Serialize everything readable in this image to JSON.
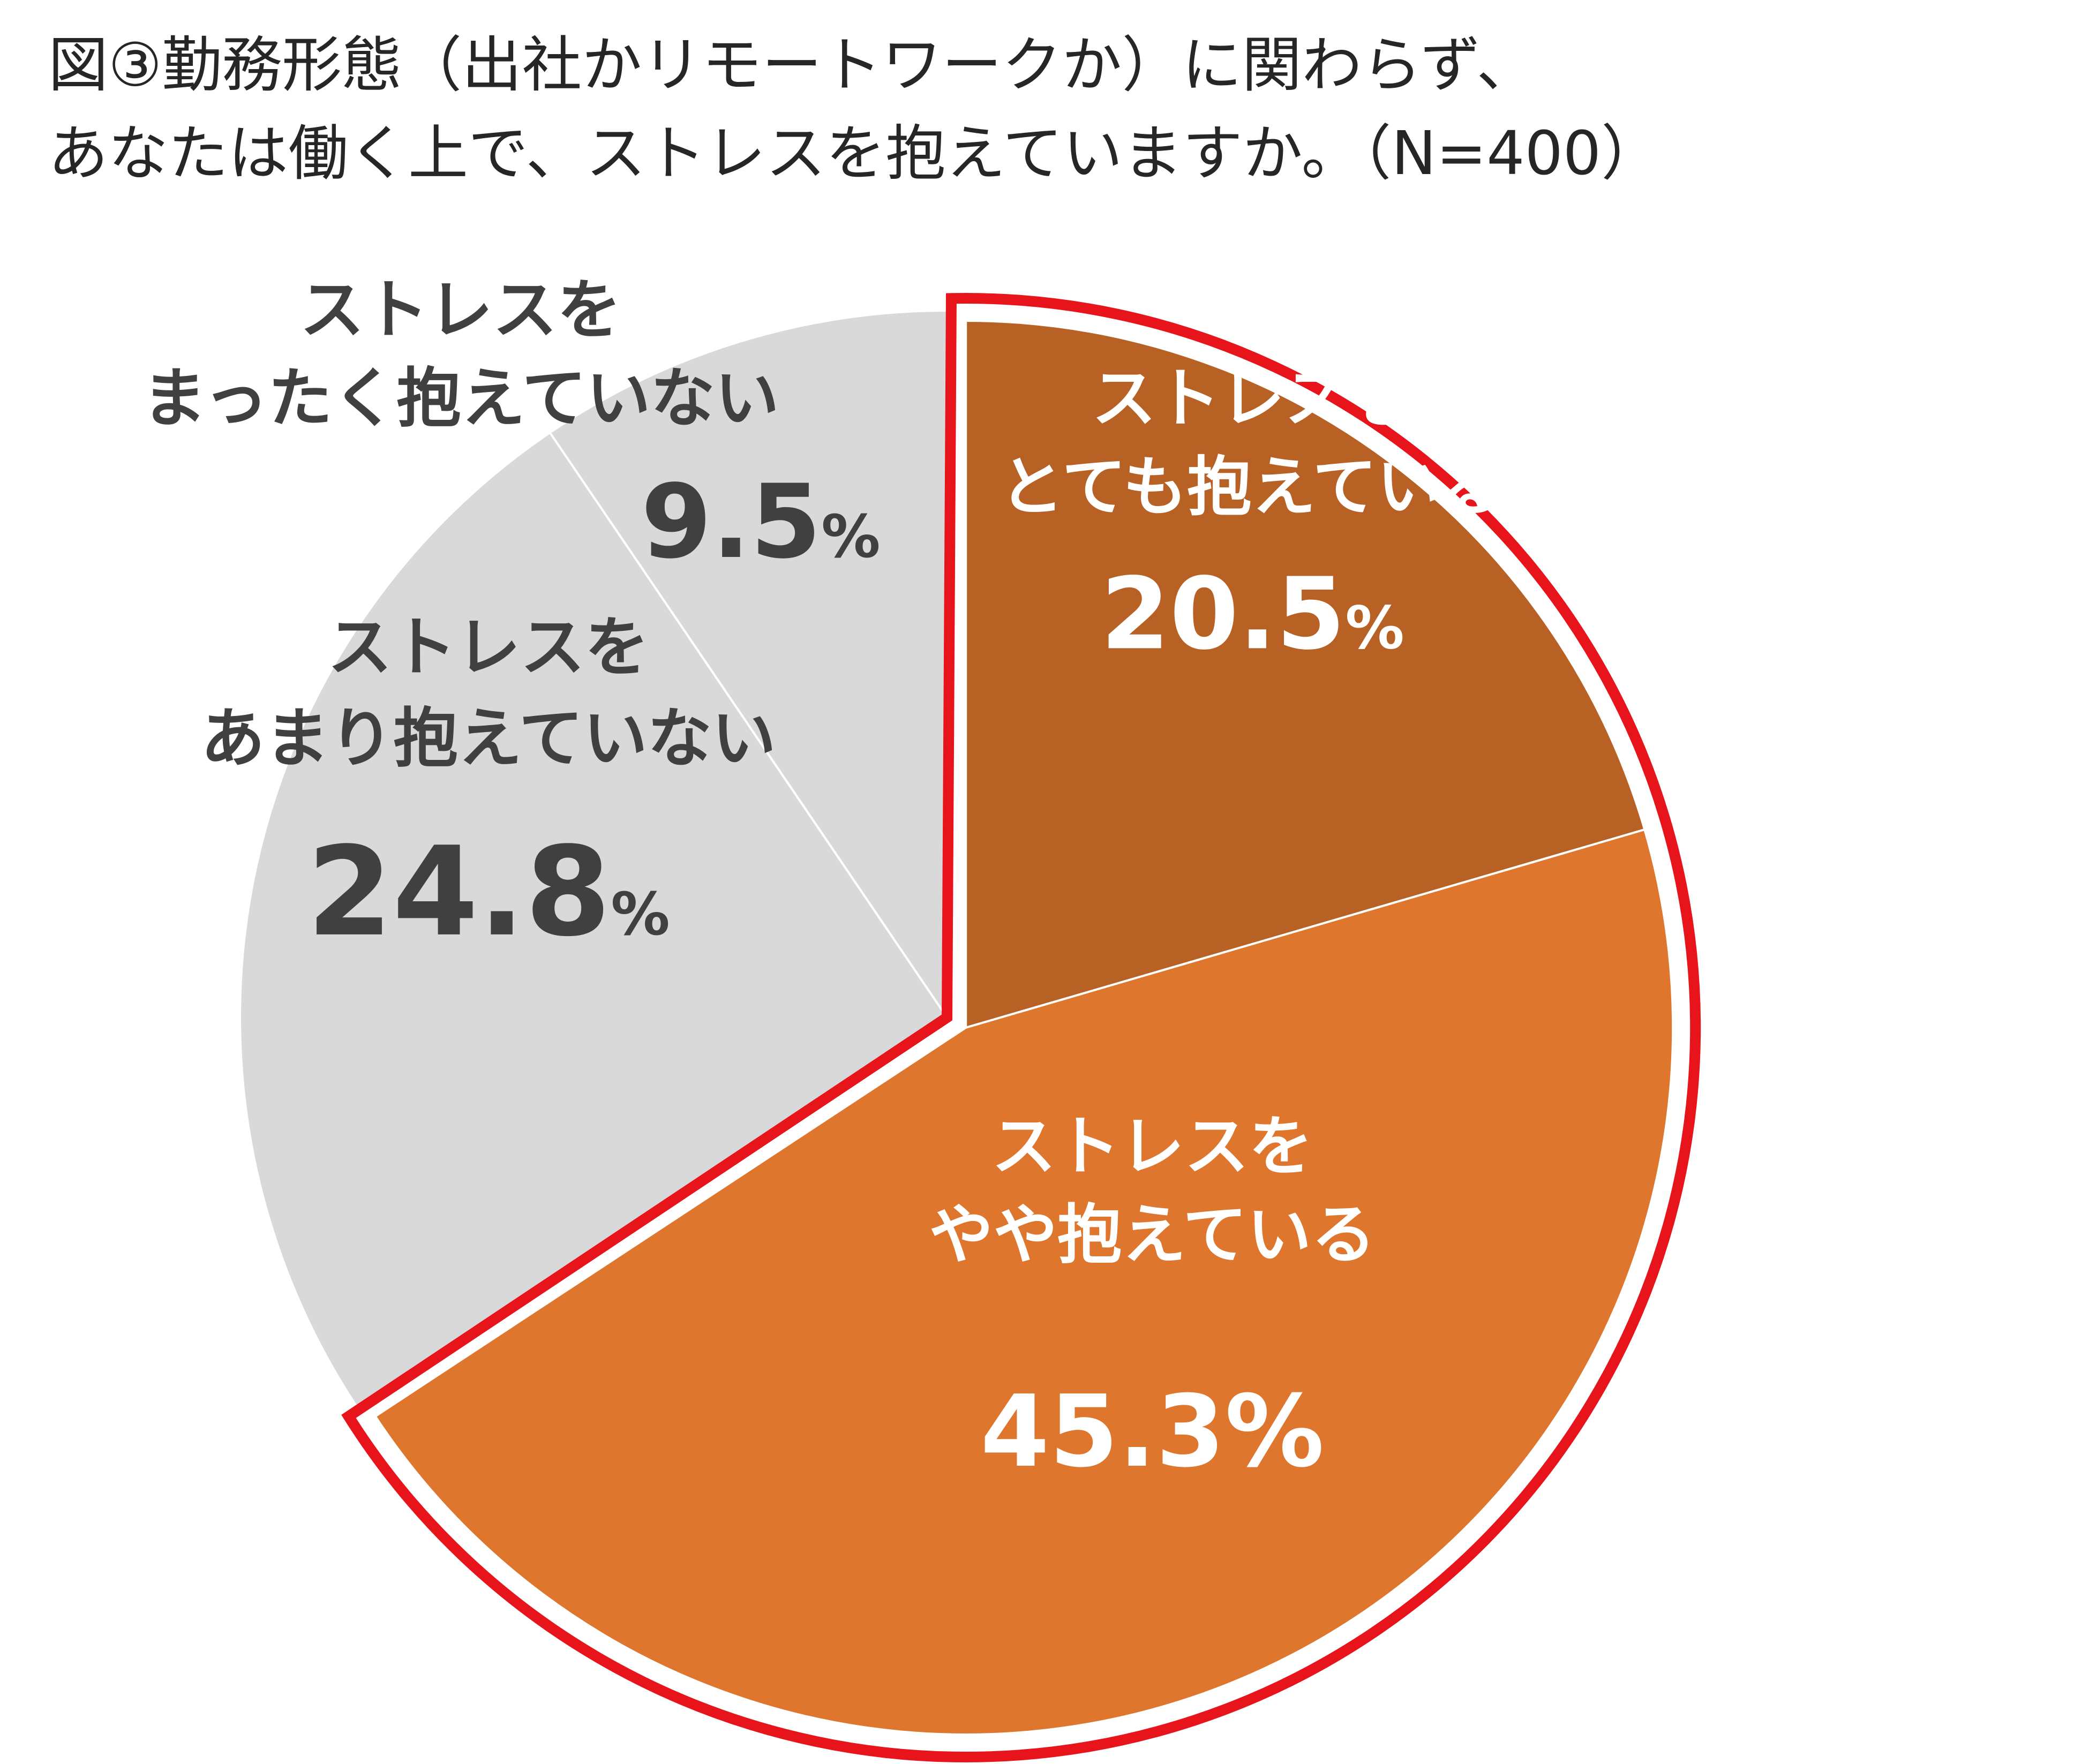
{
  "chart_data": {
    "type": "pie",
    "title": {
      "line1": "図③勤務形態（出社かリモートワークか）に関わらず、",
      "line2": "あなたは働く上で、ストレスを抱えていますか。（N=400）"
    },
    "unit": "%",
    "slices": [
      {
        "label_line1": "ストレスを",
        "label_line2": "とても抱えている",
        "value": 20.5,
        "value_text": "20.5",
        "color": "#B86125",
        "text_color": "#FFFFFF"
      },
      {
        "label_line1": "ストレスを",
        "label_line2": "やや抱えている",
        "value": 45.3,
        "value_text": "45.3",
        "color": "#DE762E",
        "text_color": "#FFFFFF"
      },
      {
        "label_line1": "ストレスを",
        "label_line2": "あまり抱えていない",
        "value": 24.8,
        "value_text": "24.8",
        "color": "#D9D9D9",
        "text_color": "#404040"
      },
      {
        "label_line1": "ストレスを",
        "label_line2": "まったく抱えていない",
        "value": 9.5,
        "value_text": "9.5",
        "color": "#D9D9D9",
        "text_color": "#404040"
      }
    ],
    "highlight": {
      "slices": [
        0,
        1
      ],
      "color": "#E8141C"
    }
  }
}
